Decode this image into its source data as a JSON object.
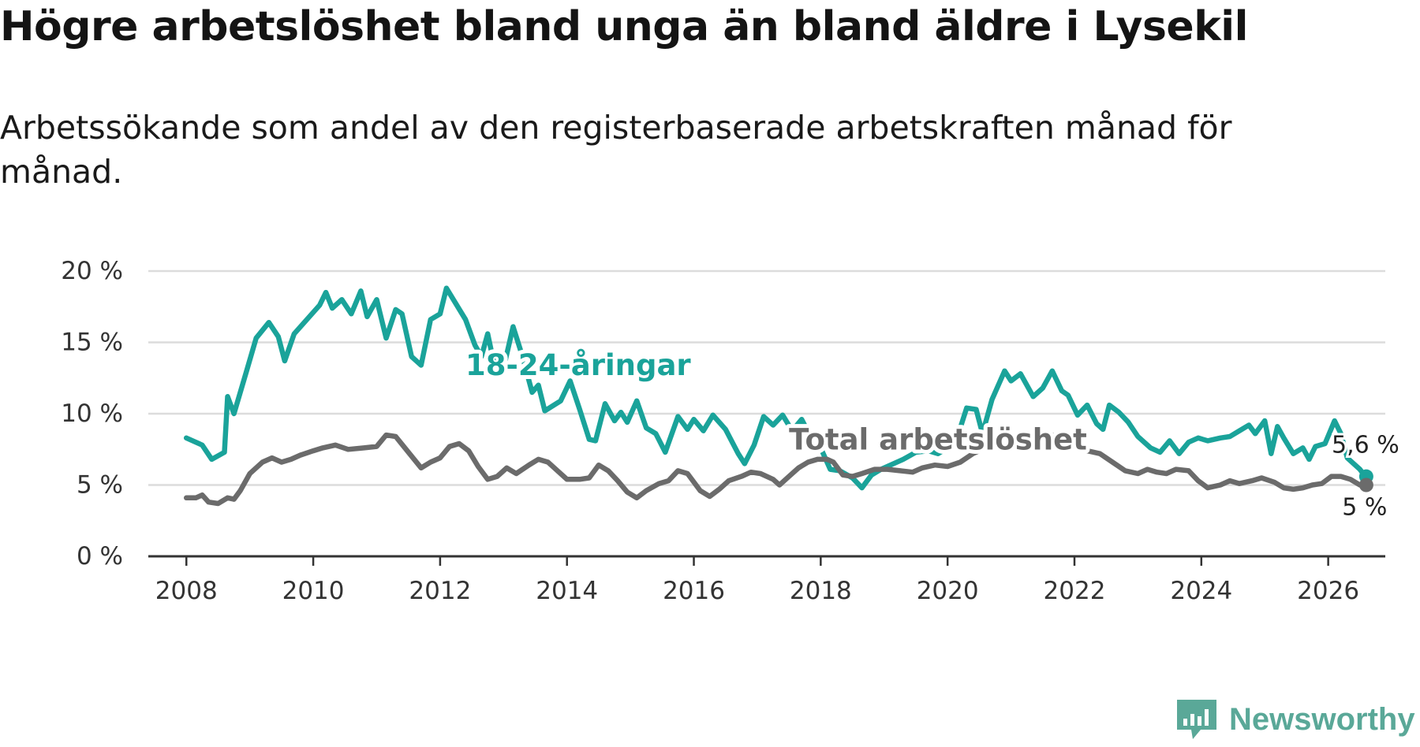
{
  "title": "Högre arbetslöshet bland unga än bland äldre i Lysekil",
  "subtitle": "Arbetssökande som andel av den registerbaserade arbetskraften månad för månad.",
  "logo": {
    "text": "Newsworthy",
    "color": "#5aa898"
  },
  "chart_data": {
    "type": "line",
    "x_ticks": [
      "2008",
      "2010",
      "2012",
      "2014",
      "2016",
      "2018",
      "2020",
      "2022",
      "2024",
      "2026"
    ],
    "y_ticks": [
      "0 %",
      "5 %",
      "10 %",
      "15 %",
      "20 %"
    ],
    "xlim": [
      2007.4,
      2026.9
    ],
    "ylim": [
      0,
      20
    ],
    "grid": true,
    "series": [
      {
        "name": "18-24-åringar",
        "color": "#1aa39a",
        "end_label": "5,6 %",
        "points": [
          [
            2008.0,
            8.3
          ],
          [
            2008.25,
            7.8
          ],
          [
            2008.4,
            6.8
          ],
          [
            2008.6,
            7.3
          ],
          [
            2008.65,
            11.2
          ],
          [
            2008.75,
            10.0
          ],
          [
            2008.95,
            13.0
          ],
          [
            2009.1,
            15.3
          ],
          [
            2009.3,
            16.4
          ],
          [
            2009.45,
            15.4
          ],
          [
            2009.55,
            13.7
          ],
          [
            2009.7,
            15.6
          ],
          [
            2009.9,
            16.6
          ],
          [
            2010.1,
            17.6
          ],
          [
            2010.2,
            18.5
          ],
          [
            2010.3,
            17.4
          ],
          [
            2010.45,
            18.0
          ],
          [
            2010.6,
            17.0
          ],
          [
            2010.75,
            18.6
          ],
          [
            2010.85,
            16.8
          ],
          [
            2011.0,
            18.0
          ],
          [
            2011.15,
            15.3
          ],
          [
            2011.3,
            17.3
          ],
          [
            2011.4,
            17.0
          ],
          [
            2011.55,
            14.0
          ],
          [
            2011.7,
            13.4
          ],
          [
            2011.85,
            16.6
          ],
          [
            2012.0,
            17.0
          ],
          [
            2012.1,
            18.8
          ],
          [
            2012.4,
            16.6
          ],
          [
            2012.55,
            14.8
          ],
          [
            2012.65,
            14.0
          ],
          [
            2012.75,
            15.6
          ],
          [
            2012.85,
            13.5
          ],
          [
            2013.0,
            13.2
          ],
          [
            2013.15,
            16.1
          ],
          [
            2013.3,
            14.0
          ],
          [
            2013.45,
            11.5
          ],
          [
            2013.55,
            12.0
          ],
          [
            2013.65,
            10.2
          ],
          [
            2013.9,
            10.9
          ],
          [
            2014.05,
            12.3
          ],
          [
            2014.2,
            10.3
          ],
          [
            2014.35,
            8.2
          ],
          [
            2014.45,
            8.1
          ],
          [
            2014.6,
            10.7
          ],
          [
            2014.75,
            9.5
          ],
          [
            2014.85,
            10.1
          ],
          [
            2014.95,
            9.4
          ],
          [
            2015.1,
            10.9
          ],
          [
            2015.25,
            9.0
          ],
          [
            2015.4,
            8.6
          ],
          [
            2015.55,
            7.3
          ],
          [
            2015.75,
            9.8
          ],
          [
            2015.9,
            8.9
          ],
          [
            2016.0,
            9.6
          ],
          [
            2016.15,
            8.8
          ],
          [
            2016.3,
            9.9
          ],
          [
            2016.5,
            8.9
          ],
          [
            2016.7,
            7.2
          ],
          [
            2016.8,
            6.5
          ],
          [
            2016.95,
            7.8
          ],
          [
            2017.1,
            9.8
          ],
          [
            2017.25,
            9.2
          ],
          [
            2017.4,
            9.9
          ],
          [
            2017.55,
            8.8
          ],
          [
            2017.7,
            9.6
          ],
          [
            2017.85,
            8.3
          ],
          [
            2018.0,
            7.6
          ],
          [
            2018.15,
            6.1
          ],
          [
            2018.3,
            6.0
          ],
          [
            2018.5,
            5.5
          ],
          [
            2018.65,
            4.8
          ],
          [
            2018.8,
            5.7
          ],
          [
            2018.95,
            6.1
          ],
          [
            2019.1,
            6.4
          ],
          [
            2019.3,
            6.8
          ],
          [
            2019.5,
            7.3
          ],
          [
            2019.7,
            7.4
          ],
          [
            2019.85,
            7.2
          ],
          [
            2020.0,
            7.6
          ],
          [
            2020.15,
            8.3
          ],
          [
            2020.3,
            10.4
          ],
          [
            2020.45,
            10.3
          ],
          [
            2020.55,
            8.6
          ],
          [
            2020.7,
            11.0
          ],
          [
            2020.9,
            13.0
          ],
          [
            2021.0,
            12.3
          ],
          [
            2021.15,
            12.8
          ],
          [
            2021.35,
            11.2
          ],
          [
            2021.5,
            11.8
          ],
          [
            2021.65,
            13.0
          ],
          [
            2021.8,
            11.6
          ],
          [
            2021.9,
            11.3
          ],
          [
            2022.05,
            9.9
          ],
          [
            2022.2,
            10.6
          ],
          [
            2022.35,
            9.3
          ],
          [
            2022.45,
            8.9
          ],
          [
            2022.55,
            10.6
          ],
          [
            2022.7,
            10.1
          ],
          [
            2022.85,
            9.4
          ],
          [
            2023.0,
            8.4
          ],
          [
            2023.2,
            7.6
          ],
          [
            2023.35,
            7.3
          ],
          [
            2023.5,
            8.1
          ],
          [
            2023.65,
            7.2
          ],
          [
            2023.8,
            8.0
          ],
          [
            2023.95,
            8.3
          ],
          [
            2024.1,
            8.1
          ],
          [
            2024.3,
            8.3
          ],
          [
            2024.45,
            8.4
          ],
          [
            2024.6,
            8.8
          ],
          [
            2024.75,
            9.2
          ],
          [
            2024.85,
            8.6
          ],
          [
            2025.0,
            9.5
          ],
          [
            2025.1,
            7.2
          ],
          [
            2025.2,
            9.1
          ],
          [
            2025.3,
            8.3
          ],
          [
            2025.45,
            7.2
          ],
          [
            2025.6,
            7.6
          ],
          [
            2025.7,
            6.8
          ],
          [
            2025.8,
            7.7
          ],
          [
            2025.95,
            7.9
          ],
          [
            2026.1,
            9.5
          ],
          [
            2026.2,
            8.6
          ],
          [
            2026.3,
            6.9
          ],
          [
            2026.4,
            6.5
          ],
          [
            2026.5,
            6.1
          ],
          [
            2026.55,
            5.8
          ],
          [
            2026.6,
            5.6
          ]
        ]
      },
      {
        "name": "Total arbetslöshet",
        "color": "#6b6b6b",
        "end_label": "5 %",
        "points": [
          [
            2008.0,
            4.1
          ],
          [
            2008.15,
            4.1
          ],
          [
            2008.25,
            4.3
          ],
          [
            2008.35,
            3.8
          ],
          [
            2008.5,
            3.7
          ],
          [
            2008.65,
            4.1
          ],
          [
            2008.75,
            4.0
          ],
          [
            2008.85,
            4.6
          ],
          [
            2009.0,
            5.8
          ],
          [
            2009.2,
            6.6
          ],
          [
            2009.35,
            6.9
          ],
          [
            2009.5,
            6.6
          ],
          [
            2009.65,
            6.8
          ],
          [
            2009.8,
            7.1
          ],
          [
            2010.0,
            7.4
          ],
          [
            2010.15,
            7.6
          ],
          [
            2010.35,
            7.8
          ],
          [
            2010.55,
            7.5
          ],
          [
            2010.8,
            7.6
          ],
          [
            2011.0,
            7.7
          ],
          [
            2011.15,
            8.5
          ],
          [
            2011.3,
            8.4
          ],
          [
            2011.5,
            7.3
          ],
          [
            2011.7,
            6.2
          ],
          [
            2011.85,
            6.6
          ],
          [
            2012.0,
            6.9
          ],
          [
            2012.15,
            7.7
          ],
          [
            2012.3,
            7.9
          ],
          [
            2012.45,
            7.4
          ],
          [
            2012.6,
            6.3
          ],
          [
            2012.75,
            5.4
          ],
          [
            2012.9,
            5.6
          ],
          [
            2013.05,
            6.2
          ],
          [
            2013.2,
            5.8
          ],
          [
            2013.4,
            6.4
          ],
          [
            2013.55,
            6.8
          ],
          [
            2013.7,
            6.6
          ],
          [
            2013.85,
            6.0
          ],
          [
            2014.0,
            5.4
          ],
          [
            2014.2,
            5.4
          ],
          [
            2014.35,
            5.5
          ],
          [
            2014.5,
            6.4
          ],
          [
            2014.65,
            6.0
          ],
          [
            2014.8,
            5.3
          ],
          [
            2014.95,
            4.5
          ],
          [
            2015.1,
            4.1
          ],
          [
            2015.25,
            4.6
          ],
          [
            2015.45,
            5.1
          ],
          [
            2015.6,
            5.3
          ],
          [
            2015.75,
            6.0
          ],
          [
            2015.9,
            5.8
          ],
          [
            2016.1,
            4.6
          ],
          [
            2016.25,
            4.2
          ],
          [
            2016.4,
            4.7
          ],
          [
            2016.55,
            5.3
          ],
          [
            2016.75,
            5.6
          ],
          [
            2016.9,
            5.9
          ],
          [
            2017.05,
            5.8
          ],
          [
            2017.25,
            5.4
          ],
          [
            2017.35,
            5.0
          ],
          [
            2017.5,
            5.6
          ],
          [
            2017.65,
            6.2
          ],
          [
            2017.8,
            6.6
          ],
          [
            2017.95,
            6.8
          ],
          [
            2018.1,
            6.8
          ],
          [
            2018.2,
            6.6
          ],
          [
            2018.35,
            5.7
          ],
          [
            2018.5,
            5.6
          ],
          [
            2018.65,
            5.8
          ],
          [
            2018.85,
            6.1
          ],
          [
            2019.05,
            6.1
          ],
          [
            2019.25,
            6.0
          ],
          [
            2019.45,
            5.9
          ],
          [
            2019.6,
            6.2
          ],
          [
            2019.8,
            6.4
          ],
          [
            2020.0,
            6.3
          ],
          [
            2020.2,
            6.6
          ],
          [
            2020.4,
            7.2
          ],
          [
            2020.6,
            7.6
          ],
          [
            2020.8,
            7.7
          ],
          [
            2021.0,
            7.9
          ],
          [
            2021.2,
            8.1
          ],
          [
            2021.4,
            8.4
          ],
          [
            2021.6,
            8.6
          ],
          [
            2021.8,
            8.2
          ],
          [
            2022.0,
            7.8
          ],
          [
            2022.2,
            7.4
          ],
          [
            2022.4,
            7.2
          ],
          [
            2022.6,
            6.6
          ],
          [
            2022.8,
            6.0
          ],
          [
            2023.0,
            5.8
          ],
          [
            2023.15,
            6.1
          ],
          [
            2023.3,
            5.9
          ],
          [
            2023.45,
            5.8
          ],
          [
            2023.6,
            6.1
          ],
          [
            2023.8,
            6.0
          ],
          [
            2023.95,
            5.3
          ],
          [
            2024.1,
            4.8
          ],
          [
            2024.3,
            5.0
          ],
          [
            2024.45,
            5.3
          ],
          [
            2024.6,
            5.1
          ],
          [
            2024.8,
            5.3
          ],
          [
            2024.95,
            5.5
          ],
          [
            2025.15,
            5.2
          ],
          [
            2025.3,
            4.8
          ],
          [
            2025.45,
            4.7
          ],
          [
            2025.6,
            4.8
          ],
          [
            2025.75,
            5.0
          ],
          [
            2025.9,
            5.1
          ],
          [
            2026.05,
            5.6
          ],
          [
            2026.2,
            5.6
          ],
          [
            2026.35,
            5.4
          ],
          [
            2026.5,
            5.0
          ],
          [
            2026.6,
            5.0
          ]
        ]
      }
    ],
    "annotations": [
      {
        "text": "18-24-åringar",
        "x": 2012.4,
        "y": 12.7,
        "color": "#1aa39a"
      },
      {
        "text": "Total arbetslöshet",
        "x": 2017.5,
        "y": 7.5,
        "color": "#6b6b6b"
      }
    ]
  }
}
